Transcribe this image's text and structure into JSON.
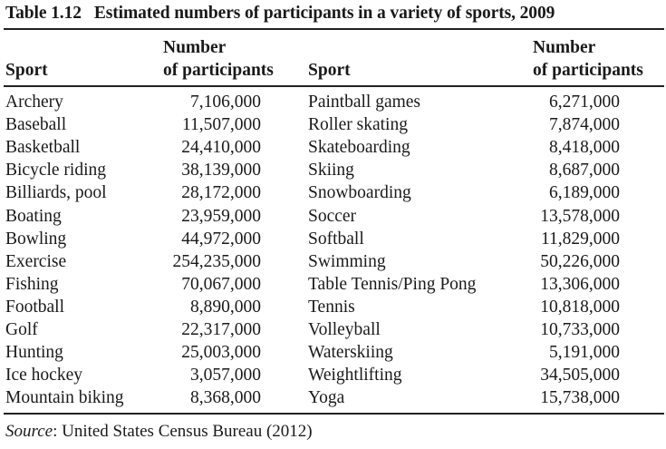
{
  "table": {
    "label": "Table 1.12",
    "title": "Estimated numbers of participants in a variety of sports, 2009",
    "headers": {
      "sport_left": "Sport",
      "number_left_1": "Number",
      "number_left_2": "of participants",
      "sport_right": "Sport",
      "number_right_1": "Number",
      "number_right_2": "of participants"
    },
    "rows": [
      {
        "sport1": "Archery",
        "n1": "7,106,000",
        "sport2": "Paintball games",
        "n2": "6,271,000"
      },
      {
        "sport1": "Baseball",
        "n1": "11,507,000",
        "sport2": "Roller skating",
        "n2": "7,874,000"
      },
      {
        "sport1": "Basketball",
        "n1": "24,410,000",
        "sport2": "Skateboarding",
        "n2": "8,418,000"
      },
      {
        "sport1": "Bicycle riding",
        "n1": "38,139,000",
        "sport2": "Skiing",
        "n2": "8,687,000"
      },
      {
        "sport1": "Billiards, pool",
        "n1": "28,172,000",
        "sport2": "Snowboarding",
        "n2": "6,189,000"
      },
      {
        "sport1": "Boating",
        "n1": "23,959,000",
        "sport2": "Soccer",
        "n2": "13,578,000"
      },
      {
        "sport1": "Bowling",
        "n1": "44,972,000",
        "sport2": "Softball",
        "n2": "11,829,000"
      },
      {
        "sport1": "Exercise",
        "n1": "254,235,000",
        "sport2": "Swimming",
        "n2": "50,226,000"
      },
      {
        "sport1": "Fishing",
        "n1": "70,067,000",
        "sport2": "Table Tennis/Ping Pong",
        "n2": "13,306,000"
      },
      {
        "sport1": "Football",
        "n1": "8,890,000",
        "sport2": "Tennis",
        "n2": "10,818,000"
      },
      {
        "sport1": "Golf",
        "n1": "22,317,000",
        "sport2": "Volleyball",
        "n2": "10,733,000"
      },
      {
        "sport1": "Hunting",
        "n1": "25,003,000",
        "sport2": "Waterskiing",
        "n2": "5,191,000"
      },
      {
        "sport1": "Ice hockey",
        "n1": "3,057,000",
        "sport2": "Weightlifting",
        "n2": "34,505,000"
      },
      {
        "sport1": "Mountain biking",
        "n1": "8,368,000",
        "sport2": "Yoga",
        "n2": "15,738,000"
      }
    ],
    "source_label": "Source",
    "source_text": ": United States Census Bureau (2012)"
  }
}
